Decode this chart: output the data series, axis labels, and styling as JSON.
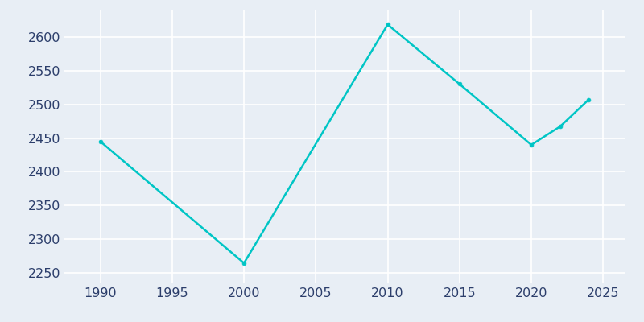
{
  "years": [
    1990,
    2000,
    2010,
    2015,
    2020,
    2022,
    2024
  ],
  "population": [
    2445,
    2265,
    2618,
    2530,
    2440,
    2467,
    2507
  ],
  "line_color": "#00C5C5",
  "marker": "o",
  "marker_size": 3.5,
  "bg_color": "#E8EEF5",
  "plot_bg_color": "#E8EEF5",
  "grid_color": "#FFFFFF",
  "xlim": [
    1987.5,
    2026.5
  ],
  "ylim": [
    2235,
    2640
  ],
  "xticks": [
    1990,
    1995,
    2000,
    2005,
    2010,
    2015,
    2020,
    2025
  ],
  "yticks": [
    2250,
    2300,
    2350,
    2400,
    2450,
    2500,
    2550,
    2600
  ],
  "tick_label_color": "#2C3E6B",
  "tick_fontsize": 11.5,
  "linewidth": 1.8
}
